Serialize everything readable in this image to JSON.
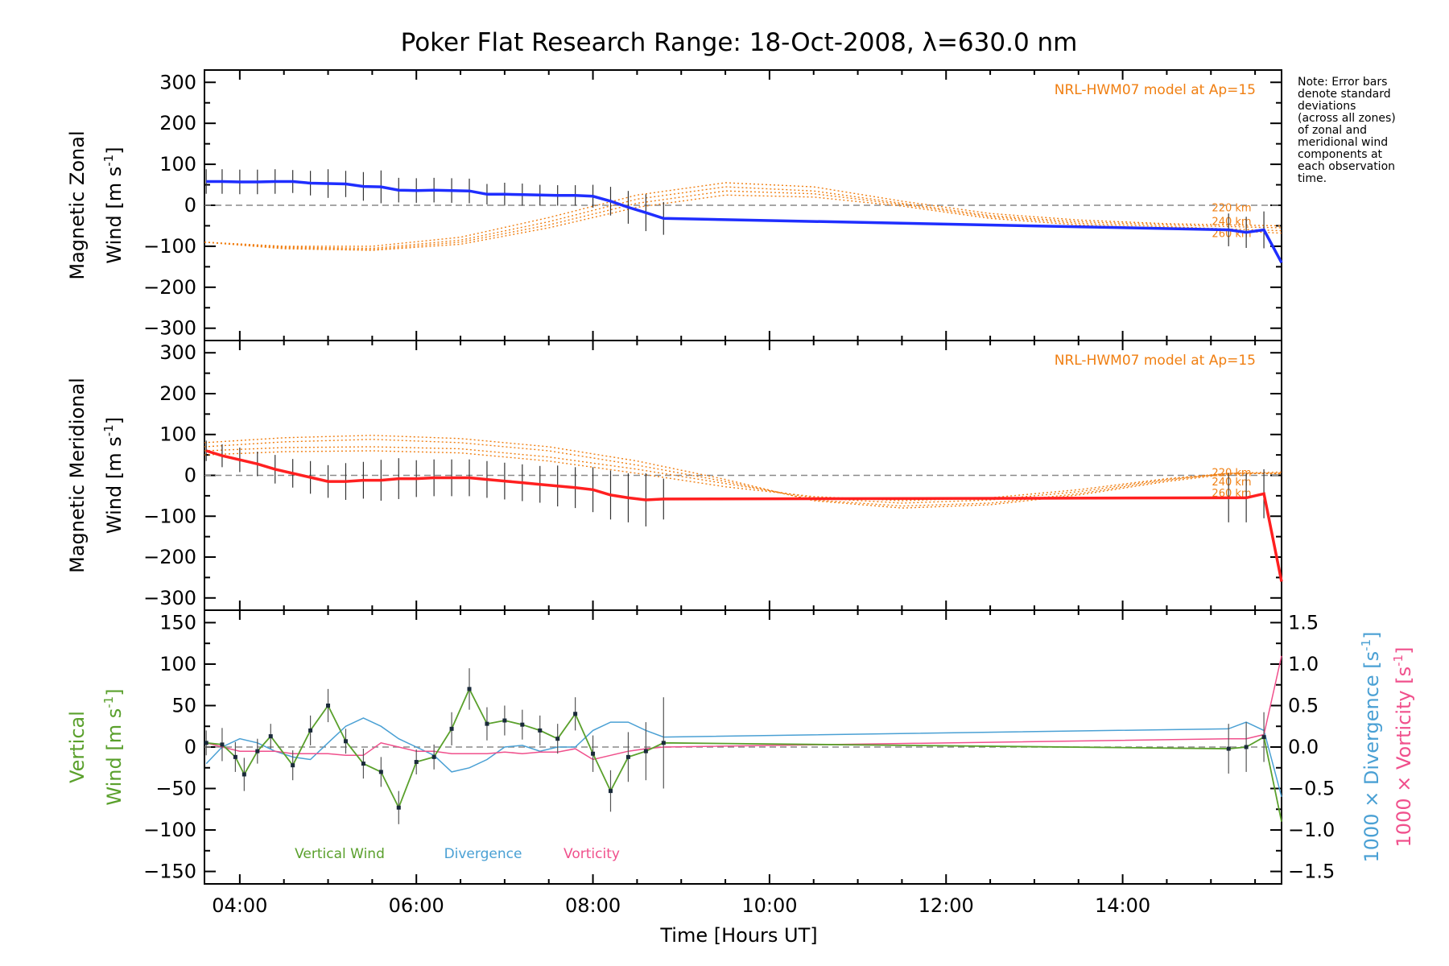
{
  "chart_data": {
    "title": "Poker Flat Research Range: 18-Oct-2008, λ=630.0 nm",
    "xlabel": "Time [Hours UT]",
    "xlim": [
      3.6,
      15.8
    ],
    "x_ticks": [
      "04:00",
      "06:00",
      "08:00",
      "10:00",
      "12:00",
      "14:00"
    ],
    "note": [
      "Note: Error bars",
      "denote standard",
      "deviations",
      "(across all zones)",
      "of zonal and",
      "meridional wind",
      "components at",
      "each observation",
      "time."
    ],
    "model_label": "NRL-HWM07 model at Ap=15",
    "model_altitudes": [
      "220 km",
      "240 km",
      "260 km"
    ],
    "colors": {
      "zonal": "#1f2eff",
      "meridional": "#ff2020",
      "vertical": "#5aa02c",
      "divergence": "#4aa0d4",
      "vorticity": "#f0508c",
      "model": "#f07f12"
    },
    "panels": [
      {
        "type": "line",
        "ylabel_1": "Magnetic Zonal",
        "ylabel_2": "Wind [m s",
        "ylabel_sup": "-1",
        "ylabel_close": "]",
        "ylim": [
          -330,
          330
        ],
        "y_ticks": [
          "300",
          "200",
          "100",
          "0",
          "−100",
          "−200",
          "−300"
        ],
        "series": [
          {
            "x": [
              3.62,
              3.8,
              4.0,
              4.2,
              4.4,
              4.6,
              4.8,
              5.0,
              5.2,
              5.4,
              5.6,
              5.8,
              6.0,
              6.2,
              6.4,
              6.6,
              6.8,
              7.0,
              7.2,
              7.4,
              7.6,
              7.8,
              8.0,
              8.2,
              8.4,
              8.6,
              8.8,
              15.2,
              15.4,
              15.6,
              15.8
            ],
            "y": [
              58,
              58,
              57,
              57,
              58,
              58,
              54,
              53,
              52,
              46,
              45,
              37,
              36,
              37,
              36,
              35,
              27,
              27,
              26,
              25,
              24,
              24,
              22,
              10,
              -5,
              -18,
              -32,
              -60,
              -66,
              -60,
              -140
            ],
            "err": [
              30,
              30,
              30,
              30,
              30,
              28,
              30,
              35,
              32,
              35,
              40,
              30,
              30,
              30,
              30,
              30,
              25,
              28,
              27,
              25,
              25,
              25,
              28,
              35,
              40,
              45,
              40,
              40,
              38,
              45,
              0
            ]
          }
        ],
        "model": [
          {
            "x": [
              3.6,
              4.5,
              5.5,
              6.5,
              7.5,
              8.5,
              9.5,
              10.5,
              11.5,
              12.5,
              13.5,
              14.5,
              15.2,
              15.8
            ],
            "y": [
              -90,
              -102,
              -105,
              -85,
              -40,
              15,
              45,
              35,
              5,
              -25,
              -40,
              -48,
              -52,
              -55
            ]
          },
          {
            "x": [
              3.6,
              4.5,
              5.5,
              6.5,
              7.5,
              8.5,
              9.5,
              10.5,
              11.5,
              12.5,
              13.5,
              14.5,
              15.2,
              15.8
            ],
            "y": [
              -90,
              -100,
              -100,
              -78,
              -30,
              25,
              55,
              45,
              10,
              -20,
              -36,
              -45,
              -48,
              -50
            ]
          },
          {
            "x": [
              3.6,
              4.5,
              5.5,
              6.5,
              7.5,
              8.5,
              9.5,
              10.5,
              11.5,
              12.5,
              13.5,
              14.5,
              15.2,
              15.8
            ],
            "y": [
              -90,
              -104,
              -108,
              -90,
              -48,
              5,
              35,
              28,
              2,
              -28,
              -44,
              -52,
              -58,
              -62
            ]
          },
          {
            "x": [
              3.6,
              4.5,
              5.5,
              6.5,
              7.5,
              8.5,
              9.5,
              10.5,
              11.5,
              12.5,
              13.5,
              14.5,
              15.2,
              15.8
            ],
            "y": [
              -90,
              -106,
              -110,
              -95,
              -55,
              -5,
              25,
              20,
              -2,
              -32,
              -48,
              -56,
              -62,
              -68
            ]
          }
        ]
      },
      {
        "type": "line",
        "ylabel_1": "Magnetic Meridional",
        "ylabel_2": "Wind [m s",
        "ylabel_sup": "-1",
        "ylabel_close": "]",
        "ylim": [
          -330,
          330
        ],
        "y_ticks": [
          "300",
          "200",
          "100",
          "0",
          "−100",
          "−200",
          "−300"
        ],
        "series": [
          {
            "x": [
              3.62,
              3.8,
              4.0,
              4.2,
              4.4,
              4.6,
              4.8,
              5.0,
              5.2,
              5.4,
              5.6,
              5.8,
              6.0,
              6.2,
              6.4,
              6.6,
              6.8,
              7.0,
              7.2,
              7.4,
              7.6,
              7.8,
              8.0,
              8.2,
              8.4,
              8.6,
              8.8,
              15.2,
              15.4,
              15.6,
              15.8
            ],
            "y": [
              60,
              48,
              38,
              28,
              15,
              5,
              -5,
              -15,
              -15,
              -12,
              -12,
              -8,
              -8,
              -6,
              -6,
              -6,
              -10,
              -14,
              -18,
              -22,
              -26,
              -30,
              -35,
              -48,
              -55,
              -60,
              -58,
              -55,
              -55,
              -45,
              -260
            ],
            "err": [
              25,
              28,
              30,
              30,
              35,
              35,
              40,
              40,
              45,
              45,
              50,
              50,
              45,
              45,
              45,
              45,
              45,
              45,
              45,
              45,
              50,
              50,
              55,
              60,
              60,
              65,
              50,
              60,
              60,
              60,
              0
            ]
          }
        ],
        "model": [
          {
            "x": [
              3.6,
              4.5,
              5.5,
              6.5,
              7.5,
              8.5,
              9.5,
              10.5,
              11.5,
              12.5,
              13.5,
              14.5,
              15.2,
              15.8
            ],
            "y": [
              60,
              68,
              70,
              65,
              45,
              15,
              -20,
              -55,
              -68,
              -60,
              -40,
              -10,
              5,
              5
            ]
          },
          {
            "x": [
              3.6,
              4.5,
              5.5,
              6.5,
              7.5,
              8.5,
              9.5,
              10.5,
              11.5,
              12.5,
              13.5,
              14.5,
              15.2,
              15.8
            ],
            "y": [
              70,
              82,
              88,
              80,
              60,
              25,
              -15,
              -60,
              -75,
              -68,
              -45,
              -12,
              5,
              8
            ]
          },
          {
            "x": [
              3.6,
              4.5,
              5.5,
              6.5,
              7.5,
              8.5,
              9.5,
              10.5,
              11.5,
              12.5,
              13.5,
              14.5,
              15.2,
              15.8
            ],
            "y": [
              80,
              92,
              98,
              90,
              70,
              35,
              -10,
              -62,
              -80,
              -72,
              -48,
              -15,
              3,
              6
            ]
          },
          {
            "x": [
              3.6,
              4.5,
              5.5,
              6.5,
              7.5,
              8.5,
              9.5,
              10.5,
              11.5,
              12.5,
              13.5,
              14.5,
              15.2,
              15.8
            ],
            "y": [
              50,
              58,
              60,
              55,
              35,
              5,
              -28,
              -52,
              -62,
              -55,
              -35,
              -8,
              5,
              4
            ]
          }
        ]
      },
      {
        "type": "line",
        "ylabel_1": "Vertical",
        "ylabel_2": "Wind [m s",
        "ylabel_sup": "-1",
        "ylabel_close": "]",
        "ylim": [
          -165,
          165
        ],
        "y_ticks": [
          "150",
          "100",
          "50",
          "0",
          "−50",
          "−100",
          "−150"
        ],
        "y_ticks_right": [
          "1.5",
          "1.0",
          "0.5",
          "0.0",
          "−0.5",
          "−1.0",
          "−1.5"
        ],
        "y_right_lim": [
          -1.65,
          1.65
        ],
        "y_right_label_div_1": "1000 × Divergence [s",
        "y_right_label_div_sup": "-1",
        "y_right_label_div_close": "]",
        "y_right_label_vor_1": "1000 × Vorticity [s",
        "y_right_label_vor_sup": "-1",
        "y_right_label_vor_close": "]",
        "legend": [
          "Vertical Wind",
          "Divergence",
          "Vorticity"
        ],
        "series": [
          {
            "name": "Vertical Wind",
            "x": [
              3.62,
              3.8,
              3.95,
              4.05,
              4.2,
              4.35,
              4.6,
              4.8,
              5.0,
              5.2,
              5.4,
              5.6,
              5.8,
              6.0,
              6.2,
              6.4,
              6.6,
              6.8,
              7.0,
              7.2,
              7.4,
              7.6,
              7.8,
              8.0,
              8.2,
              8.4,
              8.6,
              8.8,
              15.2,
              15.4,
              15.6,
              15.8
            ],
            "y": [
              5,
              3,
              -12,
              -33,
              -5,
              13,
              -22,
              20,
              50,
              7,
              -20,
              -30,
              -73,
              -18,
              -12,
              22,
              70,
              28,
              32,
              27,
              20,
              10,
              40,
              -8,
              -53,
              -12,
              -5,
              5,
              -2,
              0,
              12,
              -90
            ],
            "err": [
              15,
              20,
              18,
              20,
              15,
              15,
              18,
              18,
              20,
              15,
              18,
              18,
              20,
              15,
              15,
              20,
              25,
              20,
              18,
              18,
              18,
              18,
              20,
              22,
              25,
              30,
              35,
              55,
              30,
              30,
              30,
              0
            ]
          },
          {
            "name": "Divergence",
            "x": [
              3.62,
              3.8,
              4.0,
              4.2,
              4.4,
              4.6,
              4.8,
              5.0,
              5.2,
              5.4,
              5.6,
              5.8,
              6.0,
              6.2,
              6.4,
              6.6,
              6.8,
              7.0,
              7.2,
              7.4,
              7.6,
              7.8,
              8.0,
              8.2,
              8.4,
              8.6,
              8.8,
              15.2,
              15.4,
              15.6,
              15.8
            ],
            "y": [
              -0.2,
              0.0,
              0.1,
              0.05,
              -0.05,
              -0.12,
              -0.15,
              0.05,
              0.25,
              0.35,
              0.25,
              0.1,
              0.0,
              -0.1,
              -0.3,
              -0.25,
              -0.15,
              0.0,
              0.02,
              -0.05,
              0.0,
              0.0,
              0.2,
              0.3,
              0.3,
              0.2,
              0.12,
              0.22,
              0.3,
              0.2,
              -0.6
            ]
          },
          {
            "name": "Vorticity",
            "x": [
              3.62,
              3.8,
              4.0,
              4.2,
              4.4,
              4.6,
              4.8,
              5.0,
              5.2,
              5.4,
              5.6,
              5.8,
              6.0,
              6.2,
              6.4,
              6.6,
              6.8,
              7.0,
              7.2,
              7.4,
              7.6,
              7.8,
              8.0,
              8.2,
              8.4,
              8.6,
              8.8,
              15.2,
              15.4,
              15.6,
              15.8
            ],
            "y": [
              0.05,
              0.0,
              -0.05,
              -0.05,
              -0.05,
              -0.08,
              -0.08,
              -0.08,
              -0.1,
              -0.1,
              0.05,
              0.0,
              -0.05,
              -0.05,
              -0.08,
              -0.08,
              -0.08,
              -0.06,
              -0.08,
              -0.06,
              -0.06,
              -0.02,
              -0.15,
              -0.1,
              -0.05,
              -0.02,
              0.0,
              0.1,
              0.1,
              0.15,
              1.1
            ]
          }
        ]
      }
    ]
  }
}
